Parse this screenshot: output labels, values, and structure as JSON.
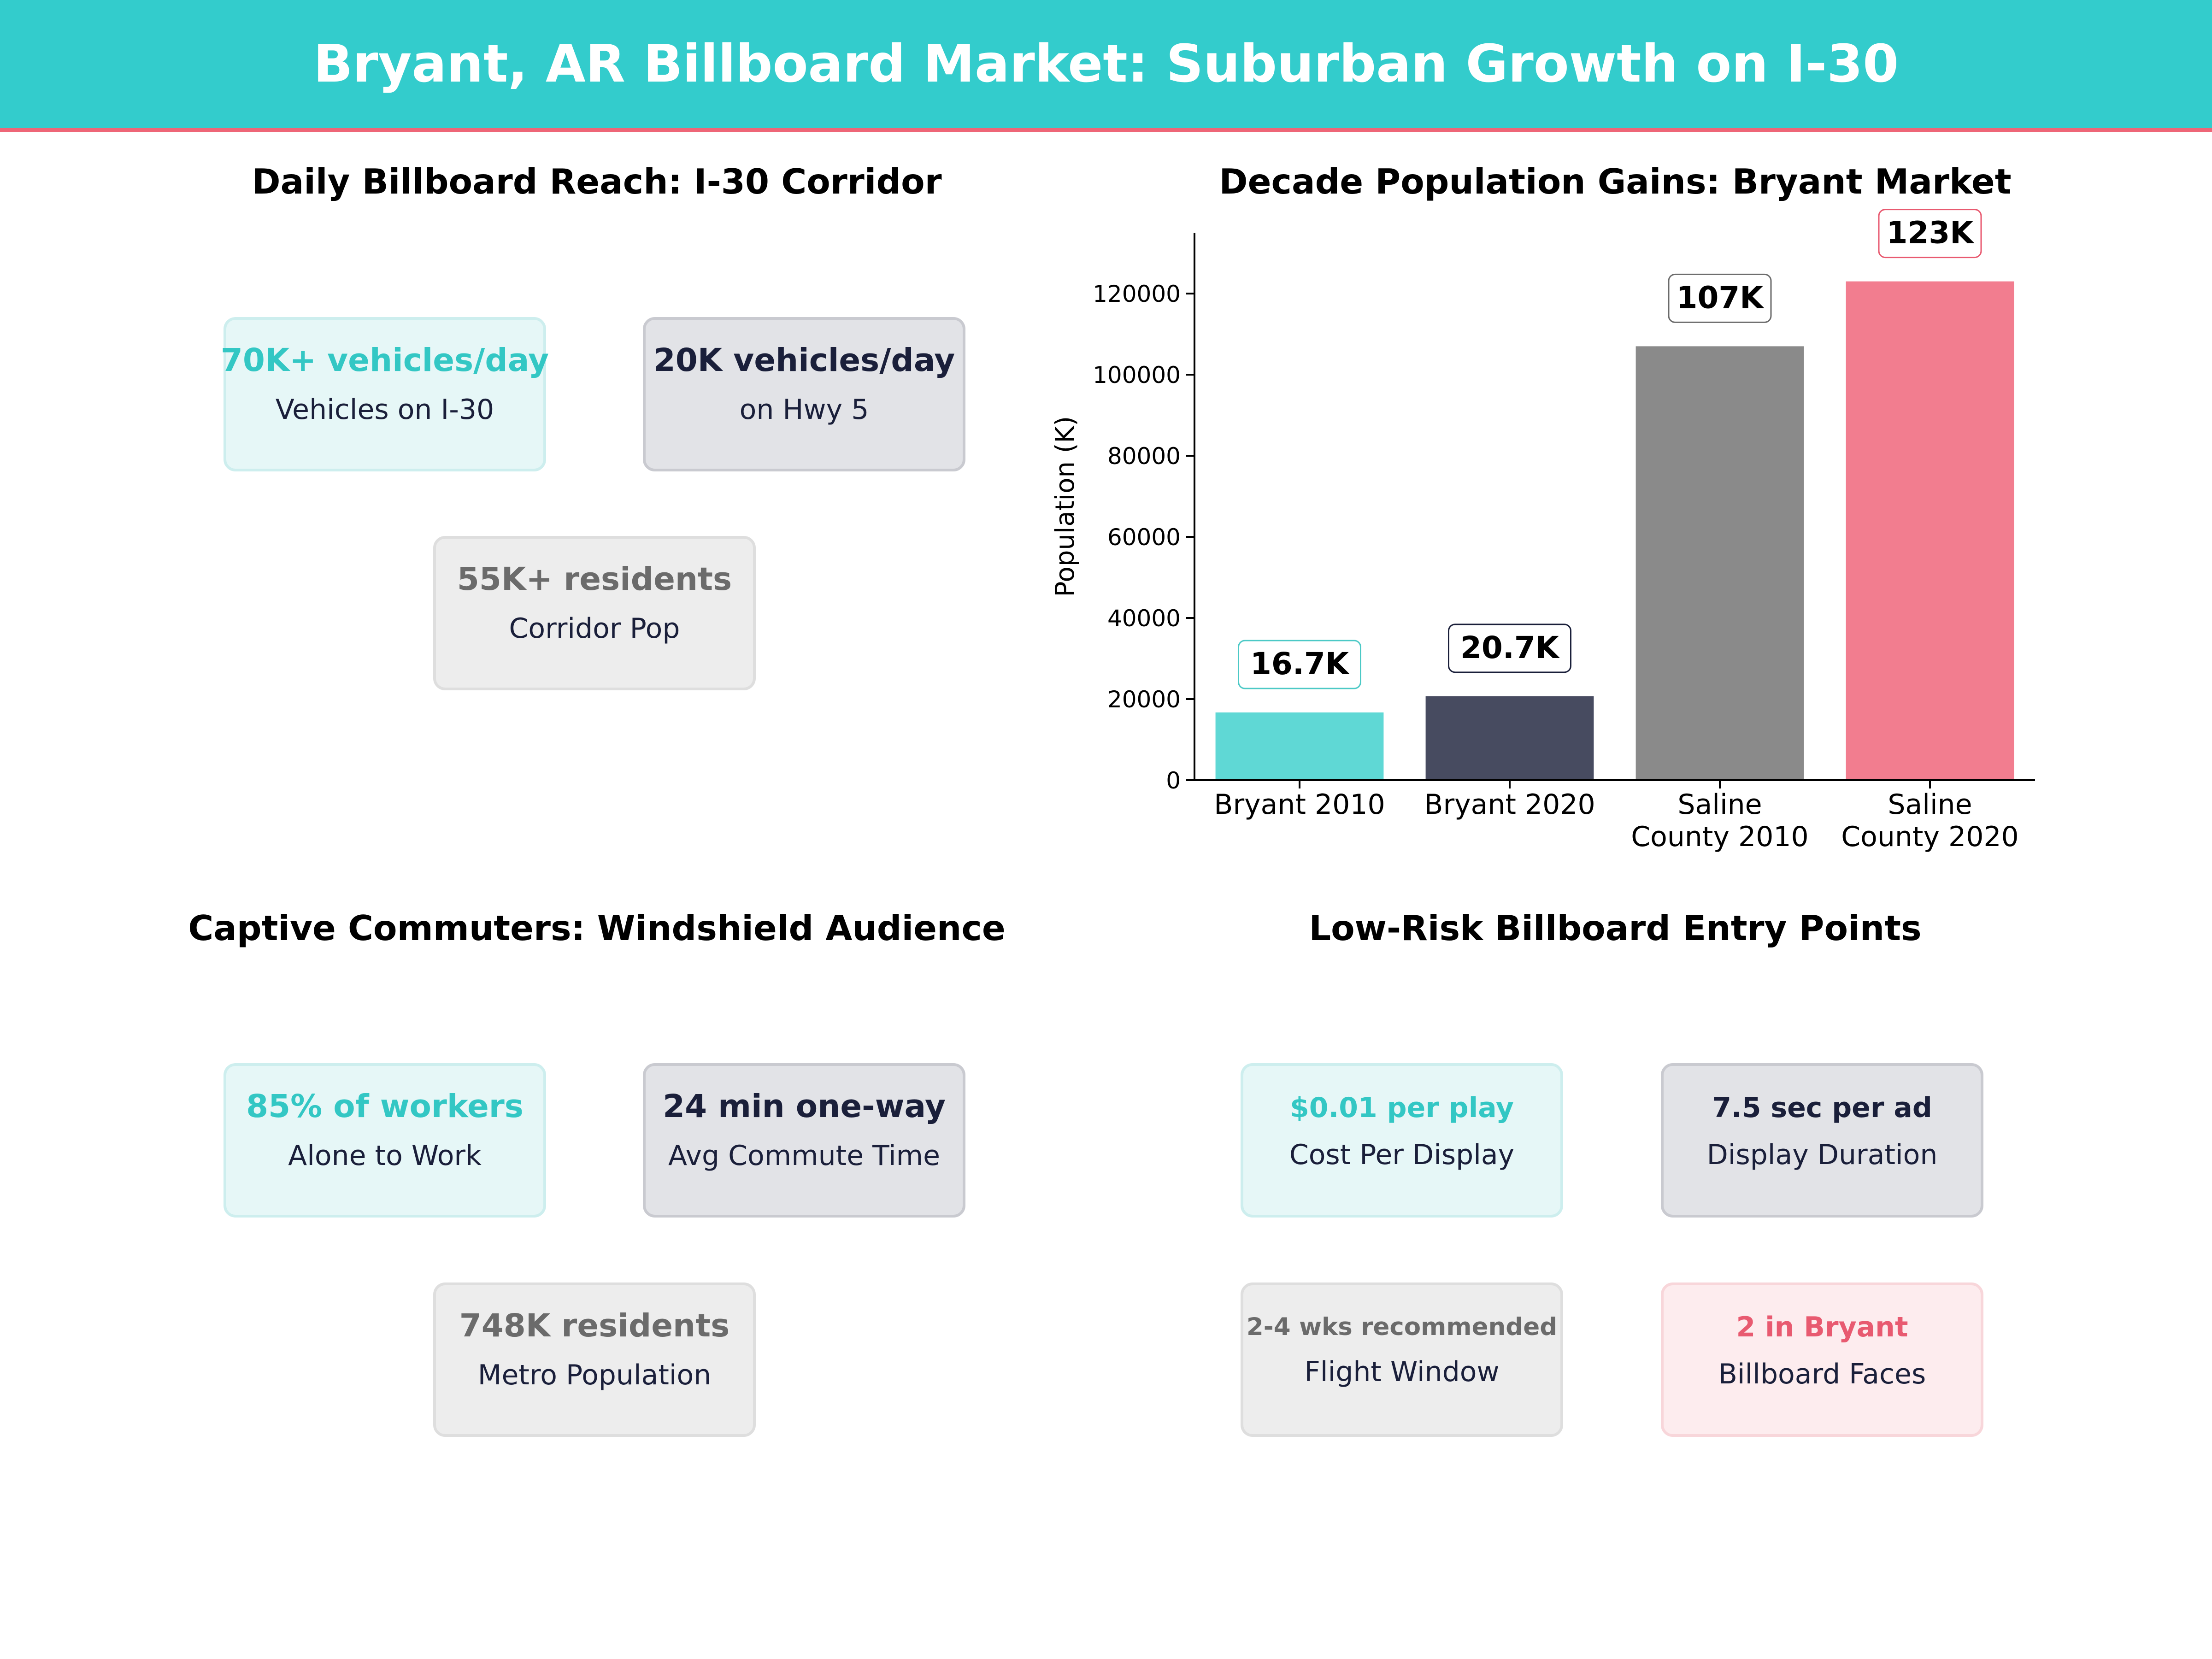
{
  "header": {
    "title": "Bryant, AR Billboard Market: Suburban Growth on I-30"
  },
  "panels": {
    "reach": {
      "title": "Daily Billboard Reach: I-30 Corridor",
      "cards": [
        {
          "value": "70K+ vehicles/day",
          "label": "Vehicles on I-30",
          "color": "#33cccc"
        },
        {
          "value": "20K vehicles/day",
          "label": "on Hwy 5",
          "color": "#1a1f3a"
        },
        {
          "value": "55K+ residents",
          "label": "Corridor Pop",
          "color": "#6b6b6b"
        }
      ]
    },
    "commuters": {
      "title": "Captive Commuters: Windshield Audience",
      "cards": [
        {
          "value": "85% of workers",
          "label": "Alone to Work",
          "color": "#33cccc"
        },
        {
          "value": "24 min one-way",
          "label": "Avg Commute Time",
          "color": "#1a1f3a"
        },
        {
          "value": "748K residents",
          "label": "Metro Population",
          "color": "#6b6b6b"
        }
      ]
    },
    "entry": {
      "title": "Low-Risk Billboard Entry Points",
      "cards": [
        {
          "value": "$0.01 per play",
          "label": "Cost Per Display",
          "color": "#33cccc"
        },
        {
          "value": "7.5 sec per ad",
          "label": "Display Duration",
          "color": "#1a1f3a"
        },
        {
          "value": "2-4 wks recommended",
          "label": "Flight Window",
          "color": "#6b6b6b"
        },
        {
          "value": "2 in Bryant",
          "label": "Billboard Faces",
          "color": "#e85a70"
        }
      ]
    }
  },
  "chart_data": {
    "type": "bar",
    "title": "Decade Population Gains: Bryant Market",
    "xlabel": "",
    "ylabel": "Population (K)",
    "categories": [
      [
        "Bryant 2010"
      ],
      [
        "Bryant 2020"
      ],
      [
        "Saline",
        "County 2010"
      ],
      [
        "Saline",
        "County 2020"
      ]
    ],
    "values": [
      16700,
      20700,
      107000,
      123000
    ],
    "data_labels": [
      "16.7K",
      "20.7K",
      "107K",
      "123K"
    ],
    "colors": [
      "#5fd8d5",
      "#474b60",
      "#8a8a8a",
      "#f27d8f"
    ],
    "label_border_colors": [
      "#4cc9c6",
      "#1a1f3a",
      "#6b6b6b",
      "#e85a70"
    ],
    "yticks": [
      0,
      20000,
      40000,
      60000,
      80000,
      100000,
      120000
    ],
    "ylim": [
      0,
      135000
    ],
    "grid": false,
    "legend": "none"
  }
}
